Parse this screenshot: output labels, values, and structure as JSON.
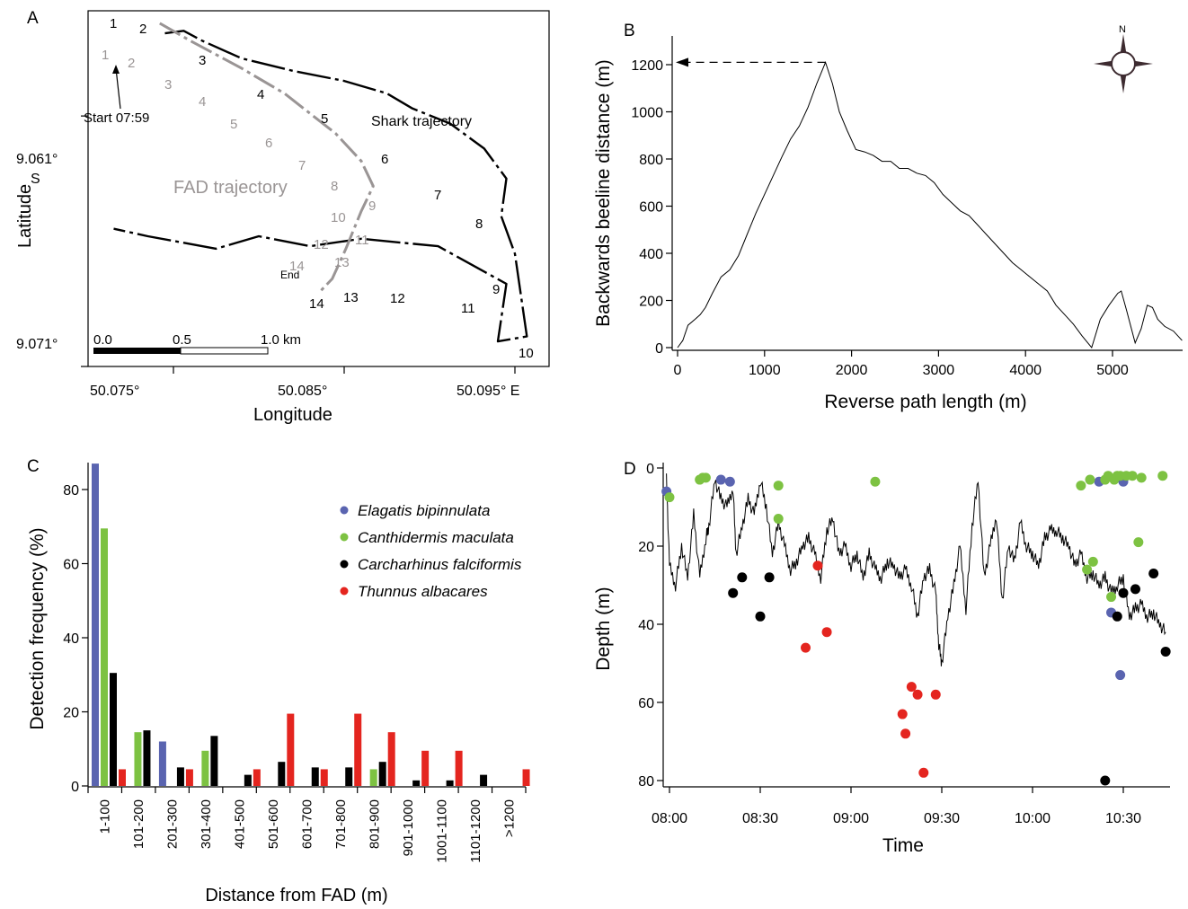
{
  "panels": {
    "A": {
      "letter": "A",
      "xlabel": "Longitude",
      "ylabel": "Latitude",
      "x_ticks": [
        "50.075°",
        "50.085°",
        "50.095° E"
      ],
      "y_ticks": [
        "9.061°",
        "S",
        "9.071°"
      ],
      "start_label": "Start 07:59",
      "end_label": "End",
      "shark_label": "Shark trajectory",
      "fad_label": "FAD trajectory",
      "scale_labels": [
        "0.0",
        "0.5",
        "1.0 km"
      ],
      "shark_numbers": [
        "1",
        "2",
        "3",
        "4",
        "5",
        "6",
        "7",
        "8",
        "9",
        "10",
        "11",
        "12",
        "13",
        "14"
      ],
      "fad_numbers": [
        "1",
        "2",
        "3",
        "4",
        "5",
        "6",
        "7",
        "8",
        "9",
        "10",
        "11",
        "12",
        "13",
        "14"
      ]
    },
    "B": {
      "letter": "B",
      "compass_label": "N"
    },
    "C": {
      "letter": "C"
    },
    "D": {
      "letter": "D"
    }
  },
  "colors": {
    "shark": "#000000",
    "fad": "#9a9595",
    "elagatis": "#5a64b0",
    "canthidermis": "#7dc242",
    "carcharhinus": "#000000",
    "thunnus": "#e4251f"
  },
  "chart_data": [
    {
      "panel": "A",
      "type": "line",
      "xlabel": "Longitude",
      "ylabel": "Latitude",
      "xlim": [
        50.07,
        50.097
      ],
      "ylim": [
        9.071,
        9.0568
      ],
      "series": [
        {
          "name": "Shark trajectory",
          "points": [
            [
              50.0745,
              9.0577
            ],
            [
              50.0756,
              9.0576
            ],
            [
              50.0767,
              9.058
            ],
            [
              50.079,
              9.0587
            ],
            [
              50.082,
              9.0592
            ],
            [
              50.085,
              9.0596
            ],
            [
              50.0875,
              9.0601
            ],
            [
              50.089,
              9.0607
            ],
            [
              50.0912,
              9.0613
            ],
            [
              50.0932,
              9.0623
            ],
            [
              50.0945,
              9.0635
            ],
            [
              50.0942,
              9.065
            ],
            [
              50.095,
              9.0665
            ],
            [
              50.0957,
              9.0698
            ],
            [
              50.094,
              9.07
            ],
            [
              50.0945,
              9.0677
            ],
            [
              50.0905,
              9.0662
            ],
            [
              50.086,
              9.0659
            ],
            [
              50.083,
              9.0662
            ],
            [
              50.08,
              9.0658
            ],
            [
              50.0775,
              9.0663
            ],
            [
              50.0735,
              9.0658
            ],
            [
              50.0715,
              9.0655
            ]
          ]
        },
        {
          "name": "FAD trajectory",
          "points": [
            [
              50.0742,
              9.0573
            ],
            [
              50.076,
              9.058
            ],
            [
              50.079,
              9.0591
            ],
            [
              50.0815,
              9.0601
            ],
            [
              50.0845,
              9.0617
            ],
            [
              50.086,
              9.0628
            ],
            [
              50.0867,
              9.0638
            ],
            [
              50.086,
              9.0648
            ],
            [
              50.0851,
              9.0663
            ],
            [
              50.0843,
              9.0675
            ],
            [
              50.0836,
              9.068
            ]
          ]
        }
      ]
    },
    {
      "panel": "B",
      "type": "line",
      "xlabel": "Reverse path length (m)",
      "ylabel": "Backwards beeline distance (m)",
      "xlim": [
        0,
        5800
      ],
      "ylim": [
        0,
        1300
      ],
      "x_ticks": [
        0,
        1000,
        2000,
        3000,
        4000,
        5000
      ],
      "y_ticks": [
        0,
        200,
        400,
        600,
        800,
        1000,
        1200
      ],
      "annotation": "dashed arrow at 1200 m",
      "series": [
        {
          "name": "",
          "x": [
            0,
            60,
            120,
            200,
            260,
            320,
            400,
            500,
            600,
            700,
            800,
            900,
            1000,
            1100,
            1200,
            1300,
            1400,
            1500,
            1600,
            1700,
            1780,
            1860,
            1950,
            2050,
            2150,
            2250,
            2350,
            2450,
            2550,
            2650,
            2750,
            2850,
            2950,
            3050,
            3150,
            3250,
            3350,
            3450,
            3550,
            3650,
            3750,
            3850,
            3950,
            4050,
            4150,
            4250,
            4350,
            4450,
            4550,
            4650,
            4760,
            4860,
            4960,
            5060,
            5100,
            5160,
            5260,
            5330,
            5400,
            5460,
            5520,
            5600,
            5700,
            5800
          ],
          "y": [
            0,
            30,
            95,
            120,
            140,
            170,
            230,
            300,
            330,
            390,
            480,
            570,
            650,
            730,
            810,
            885,
            940,
            1020,
            1120,
            1210,
            1120,
            1000,
            920,
            840,
            830,
            815,
            790,
            790,
            760,
            760,
            740,
            730,
            700,
            650,
            615,
            580,
            560,
            520,
            480,
            440,
            400,
            360,
            330,
            300,
            270,
            240,
            180,
            140,
            100,
            50,
            0,
            120,
            180,
            230,
            240,
            160,
            20,
            80,
            180,
            170,
            120,
            90,
            70,
            30
          ]
        }
      ]
    },
    {
      "panel": "C",
      "type": "bar",
      "xlabel": "Distance from FAD (m)",
      "ylabel": "Detection frequency (%)",
      "ylim": [
        0,
        87
      ],
      "y_ticks": [
        0,
        20,
        40,
        60,
        80
      ],
      "categories": [
        "1-100",
        "101-200",
        "201-300",
        "301-400",
        "401-500",
        "501-600",
        "601-700",
        "701-800",
        "801-900",
        "901-1000",
        "1001-1100",
        "1101-1200",
        ">1200"
      ],
      "legend": "top-right",
      "series": [
        {
          "name": "Elagatis bipinnulata",
          "values": [
            87,
            0,
            12,
            0,
            0,
            0,
            0,
            0,
            0,
            0,
            0,
            0,
            0
          ]
        },
        {
          "name": "Canthidermis maculata",
          "values": [
            69.5,
            14.5,
            0,
            9.5,
            0,
            0,
            0,
            0,
            4.5,
            0,
            0,
            0,
            0
          ]
        },
        {
          "name": "Carcharhinus falciformis",
          "values": [
            30.5,
            15,
            5,
            13.5,
            3,
            6.5,
            5,
            5,
            6.5,
            1.5,
            1.5,
            3,
            0
          ]
        },
        {
          "name": "Thunnus albacares",
          "values": [
            4.5,
            0,
            4.5,
            0,
            4.5,
            19.5,
            4.5,
            19.5,
            14.5,
            9.5,
            9.5,
            0,
            4.5
          ]
        }
      ]
    },
    {
      "panel": "D",
      "type": "scatter",
      "xlabel": "Time",
      "ylabel": "Depth (m)",
      "xlim": [
        "07:59",
        "10:44"
      ],
      "ylim": [
        0,
        82
      ],
      "y_ticks": [
        0,
        20,
        40,
        60,
        80
      ],
      "x_ticks": [
        "08:00",
        "08:30",
        "09:00",
        "09:30",
        "10:00",
        "10:30"
      ],
      "depth_trace": {
        "name": "",
        "t": [
          "07:59",
          "08:00",
          "08:02",
          "08:04",
          "08:06",
          "08:08",
          "08:10",
          "08:12",
          "08:13",
          "08:15",
          "08:17",
          "08:19",
          "08:21",
          "08:22",
          "08:24",
          "08:26",
          "08:28",
          "08:30",
          "08:32",
          "08:34",
          "08:36",
          "08:38",
          "08:40",
          "08:42",
          "08:44",
          "08:46",
          "08:48",
          "08:50",
          "08:52",
          "08:54",
          "08:56",
          "08:58",
          "09:00",
          "09:02",
          "09:04",
          "09:06",
          "09:08",
          "09:10",
          "09:12",
          "09:14",
          "09:16",
          "09:18",
          "09:20",
          "09:22",
          "09:24",
          "09:26",
          "09:28",
          "09:29",
          "09:30",
          "09:32",
          "09:34",
          "09:36",
          "09:38",
          "09:40",
          "09:42",
          "09:44",
          "09:46",
          "09:48",
          "09:50",
          "09:52",
          "09:54",
          "09:56",
          "09:58",
          "10:00",
          "10:02",
          "10:04",
          "10:06",
          "10:08",
          "10:10",
          "10:12",
          "10:14",
          "10:16",
          "10:18",
          "10:20",
          "10:22",
          "10:24",
          "10:26",
          "10:28",
          "10:30",
          "10:32",
          "10:34",
          "10:36",
          "10:38",
          "10:40",
          "10:42",
          "10:44"
        ],
        "depth": [
          3,
          25,
          30,
          20,
          28,
          12,
          28,
          18,
          15,
          3,
          8,
          10,
          5,
          22,
          15,
          8,
          12,
          3,
          10,
          22,
          14,
          20,
          26,
          24,
          20,
          18,
          22,
          28,
          16,
          13,
          22,
          20,
          25,
          22,
          28,
          22,
          26,
          28,
          24,
          25,
          28,
          26,
          30,
          38,
          28,
          26,
          32,
          45,
          50,
          38,
          30,
          20,
          36,
          15,
          3,
          28,
          20,
          12,
          34,
          20,
          24,
          14,
          20,
          22,
          25,
          18,
          16,
          16,
          18,
          20,
          25,
          22,
          28,
          27,
          30,
          28,
          32,
          30,
          28,
          38,
          36,
          35,
          38,
          37,
          40,
          42
        ]
      },
      "series": [
        {
          "name": "Elagatis bipinnulata",
          "points": [
            [
              "07:59",
              6
            ],
            [
              "08:17",
              3
            ],
            [
              "08:20",
              3.5
            ],
            [
              "10:22",
              3.5
            ],
            [
              "10:26",
              37
            ],
            [
              "10:29",
              53
            ],
            [
              "10:30",
              3.5
            ]
          ]
        },
        {
          "name": "Canthidermis maculata",
          "points": [
            [
              "08:00",
              7.5
            ],
            [
              "08:10",
              3
            ],
            [
              "08:11",
              2.5
            ],
            [
              "08:12",
              2.5
            ],
            [
              "08:36",
              4.5
            ],
            [
              "08:36",
              13
            ],
            [
              "09:08",
              3.5
            ],
            [
              "10:16",
              4.5
            ],
            [
              "10:19",
              3
            ],
            [
              "10:18",
              26
            ],
            [
              "10:20",
              24
            ],
            [
              "10:24",
              3
            ],
            [
              "10:25",
              2
            ],
            [
              "10:26",
              33
            ],
            [
              "10:27",
              3
            ],
            [
              "10:28",
              2
            ],
            [
              "10:29",
              2
            ],
            [
              "10:31",
              2
            ],
            [
              "10:33",
              2
            ],
            [
              "10:35",
              19
            ],
            [
              "10:36",
              2.5
            ],
            [
              "10:43",
              2
            ]
          ]
        },
        {
          "name": "Carcharhinus falciformis",
          "points": [
            [
              "08:21",
              32
            ],
            [
              "08:24",
              28
            ],
            [
              "08:30",
              38
            ],
            [
              "08:33",
              28
            ],
            [
              "10:24",
              80
            ],
            [
              "10:28",
              38
            ],
            [
              "10:30",
              32
            ],
            [
              "10:34",
              31
            ],
            [
              "10:40",
              27
            ],
            [
              "10:44",
              47
            ]
          ]
        },
        {
          "name": "Thunnus albacares",
          "points": [
            [
              "08:45",
              46
            ],
            [
              "08:49",
              25
            ],
            [
              "08:52",
              42
            ],
            [
              "09:17",
              63
            ],
            [
              "09:18",
              68
            ],
            [
              "09:20",
              56
            ],
            [
              "09:22",
              58
            ],
            [
              "09:24",
              78
            ],
            [
              "09:28",
              58
            ]
          ]
        }
      ]
    }
  ]
}
